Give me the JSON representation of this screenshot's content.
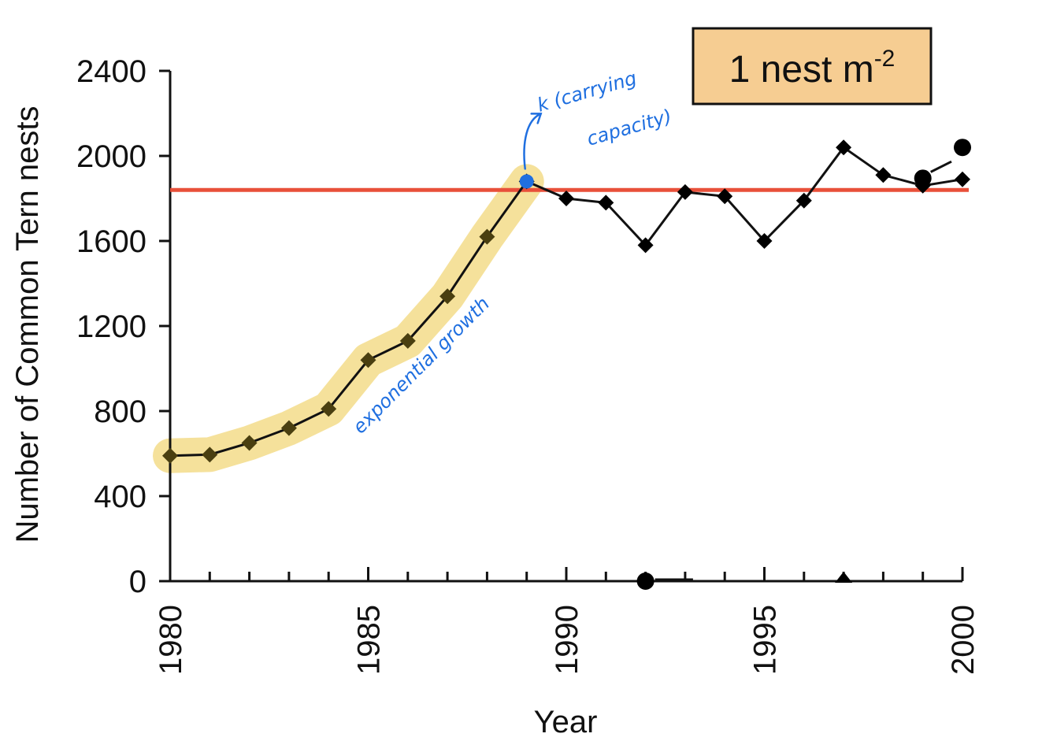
{
  "chart_data": {
    "type": "line",
    "xlabel": "Year",
    "ylabel": "Number of Common Tern nests",
    "xlim": [
      1980,
      2000
    ],
    "ylim": [
      0,
      2400
    ],
    "xticks": [
      1980,
      1985,
      1990,
      1995,
      2000
    ],
    "yticks": [
      0,
      400,
      800,
      1200,
      1600,
      2000,
      2400
    ],
    "grid": false,
    "series": [
      {
        "x": [
          1980,
          1981,
          1982,
          1983,
          1984,
          1985,
          1986,
          1987,
          1988,
          1989,
          1990,
          1991,
          1992,
          1993,
          1994,
          1995,
          1996,
          1997,
          1998,
          1999,
          2000
        ],
        "y": [
          590,
          595,
          650,
          720,
          810,
          1040,
          1130,
          1340,
          1620,
          1880,
          1800,
          1780,
          1580,
          1830,
          1810,
          1600,
          1790,
          2040,
          1910,
          1860,
          1890
        ],
        "marker": "diamond",
        "color": "#000000"
      }
    ],
    "extra_points": [
      {
        "x": 1999,
        "y": 1895,
        "marker": "circle"
      },
      {
        "x": 2000,
        "y": 2040,
        "marker": "circle"
      },
      {
        "x": 1992,
        "y": 0,
        "marker": "circle"
      },
      {
        "x": 1997,
        "y": 0,
        "marker": "triangle"
      }
    ],
    "reference_line": {
      "y": 1840,
      "color": "#e8503a"
    },
    "highlight_range": {
      "x": [
        1980,
        1989
      ],
      "color": "#f3dc8a"
    },
    "label_box": {
      "base": "1 nest m",
      "exponent": "-2",
      "fill": "#f6cd92"
    },
    "annotations": [
      {
        "text": "k (carrying capacity)",
        "line1": "k  (carrying",
        "line2": "capacity)",
        "color": "#1f6fe0",
        "marker_x": 1989,
        "marker_y": 1880
      },
      {
        "text": "exponential growth",
        "color": "#1f6fe0"
      }
    ]
  }
}
